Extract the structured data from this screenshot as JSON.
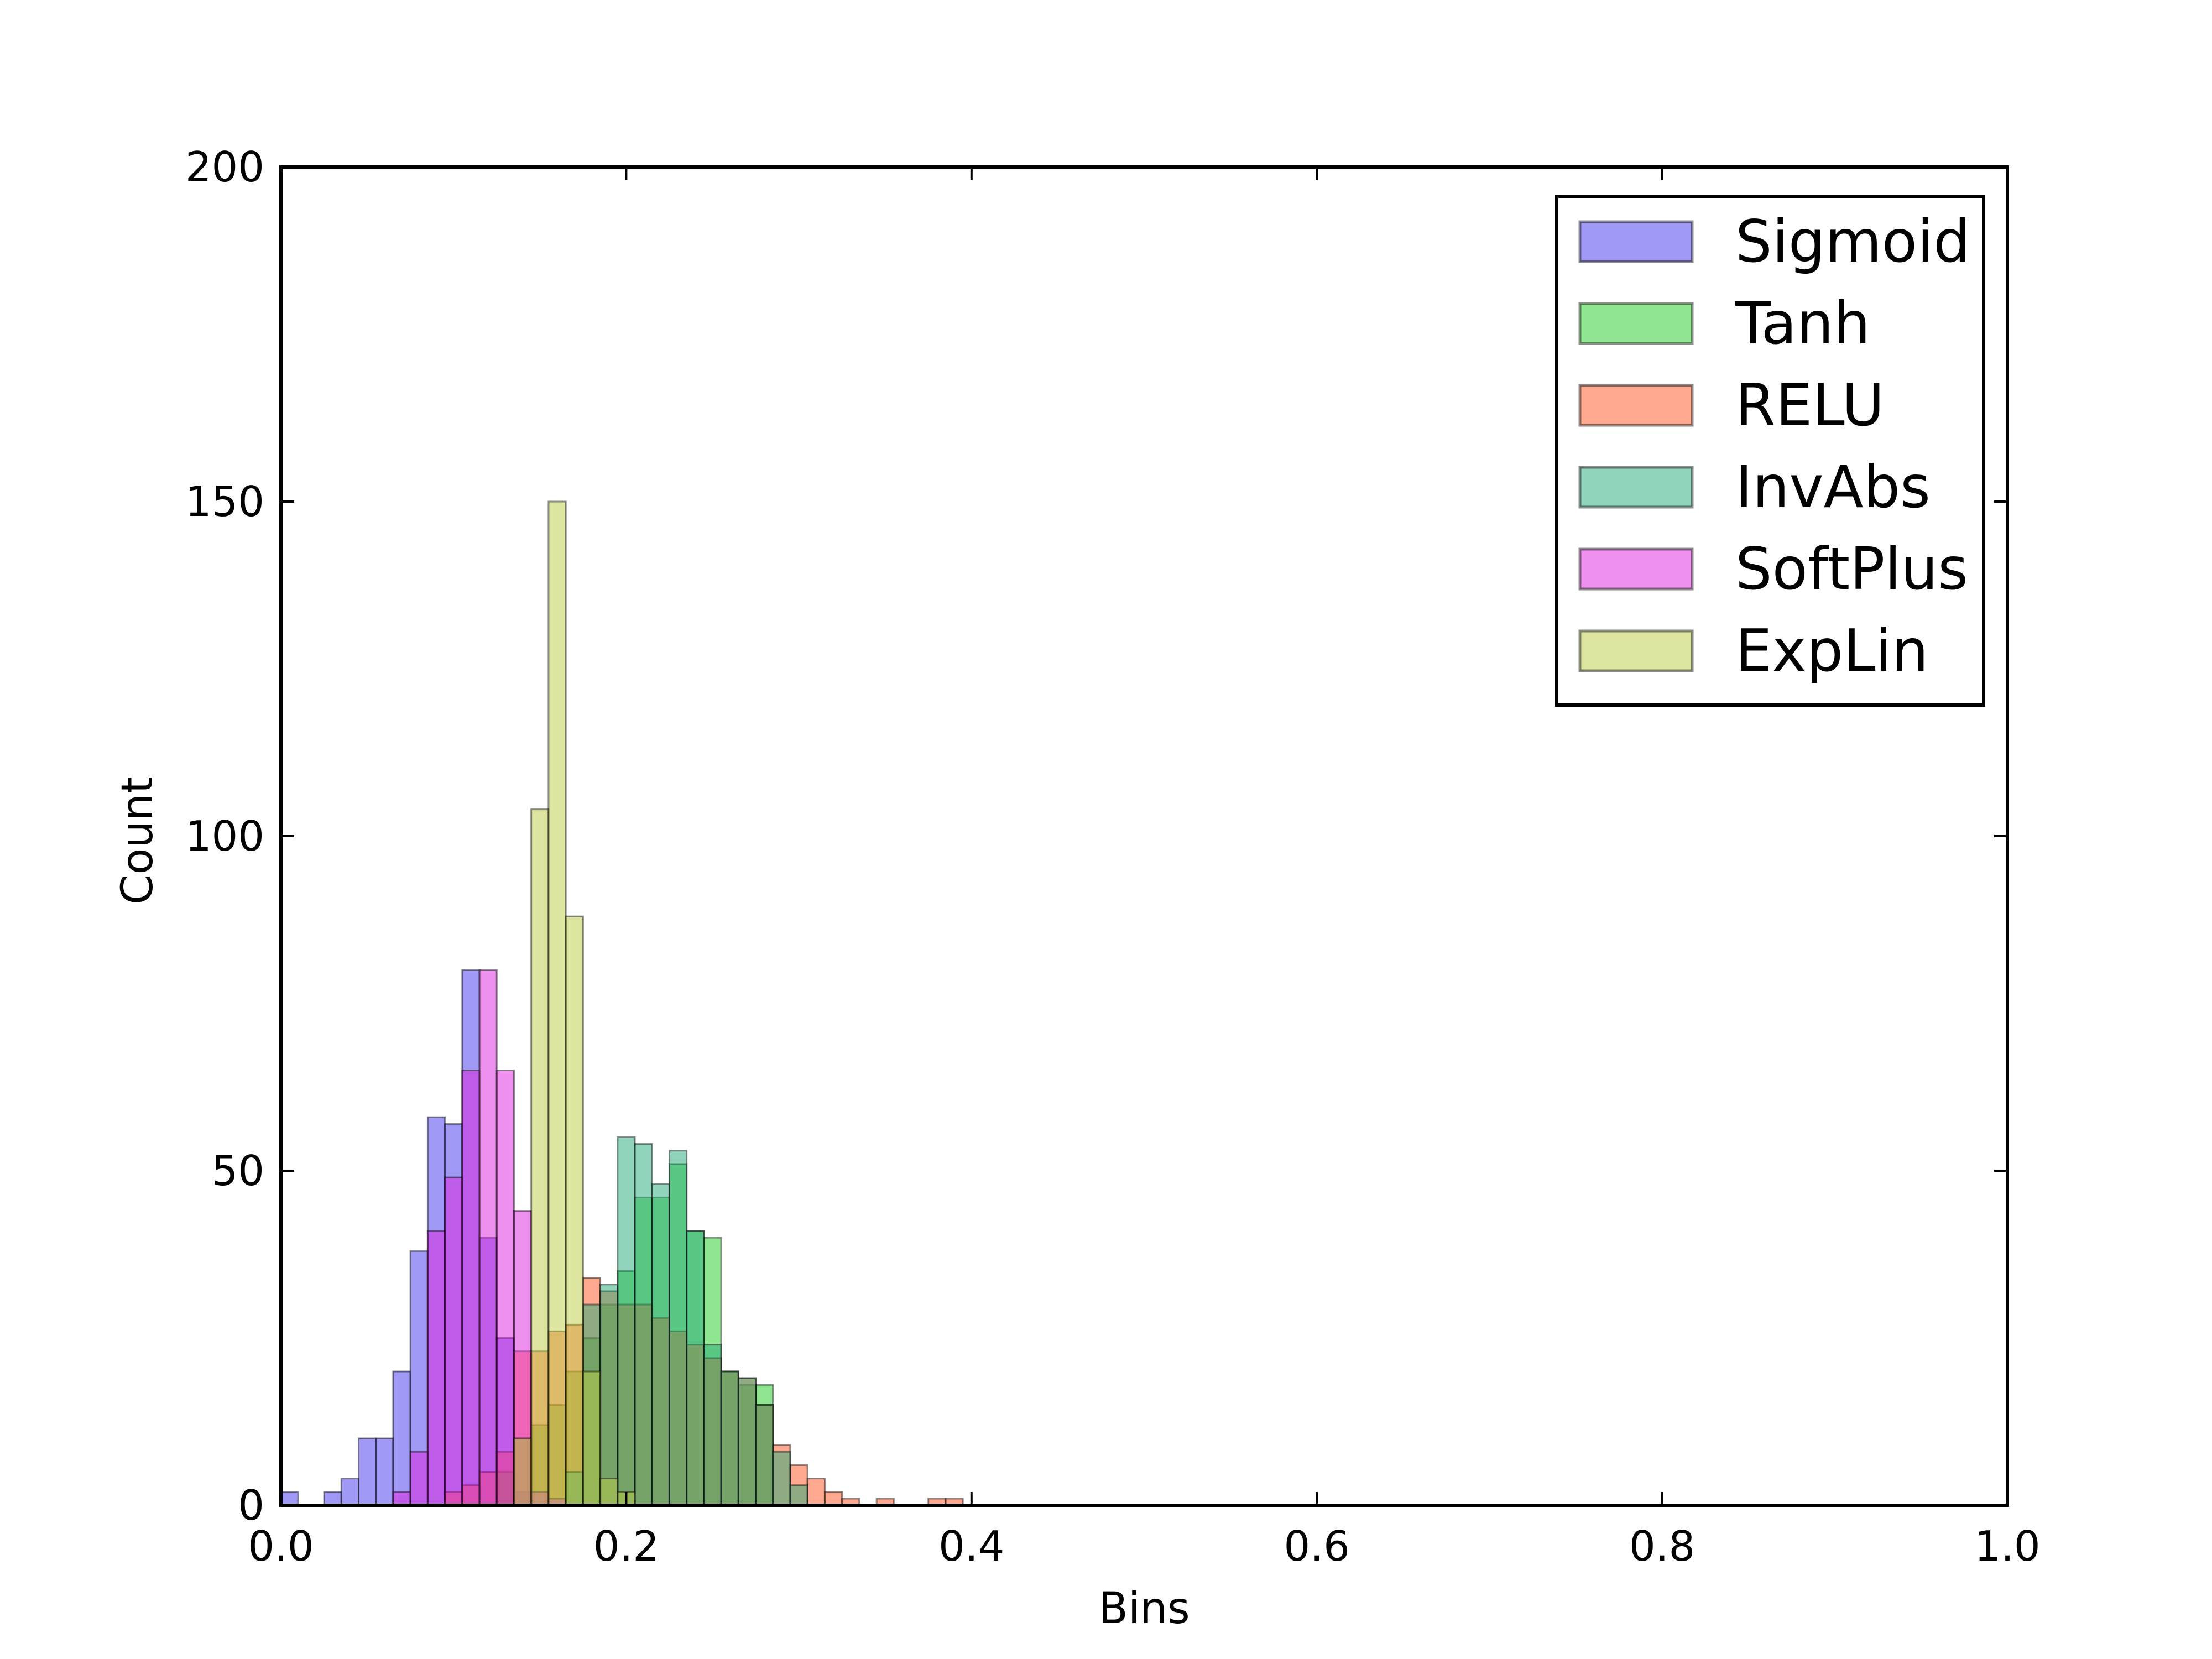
{
  "chart_data": {
    "type": "bar",
    "title": "",
    "xlabel": "Bins",
    "ylabel": "Count",
    "xlim": [
      0.0,
      1.0
    ],
    "ylim": [
      0,
      200
    ],
    "bin_width": 0.01,
    "bar_opacity": 0.5,
    "grid": false,
    "legend_position": "top-right",
    "x_ticks": [
      "0.0",
      "0.2",
      "0.4",
      "0.6",
      "0.8",
      "1.0"
    ],
    "y_ticks": [
      "0",
      "50",
      "100",
      "150",
      "200"
    ],
    "series": [
      {
        "name": "Sigmoid",
        "color": "#4433ee",
        "x": [
          0.0,
          0.025,
          0.035,
          0.045,
          0.055,
          0.065,
          0.075,
          0.085,
          0.095,
          0.105,
          0.115,
          0.125,
          0.135
        ],
        "values": [
          2,
          2,
          4,
          10,
          10,
          20,
          38,
          58,
          57,
          80,
          40,
          25,
          2
        ]
      },
      {
        "name": "Tanh",
        "color": "#22cc22",
        "x": [
          0.125,
          0.135,
          0.145,
          0.155,
          0.165,
          0.175,
          0.185,
          0.195,
          0.205,
          0.215,
          0.225,
          0.235,
          0.245,
          0.255,
          0.265,
          0.275
        ],
        "values": [
          5,
          10,
          12,
          15,
          20,
          25,
          30,
          35,
          46,
          46,
          51,
          41,
          40,
          20,
          18,
          18
        ]
      },
      {
        "name": "RELU",
        "color": "#ff5522",
        "x": [
          0.095,
          0.105,
          0.115,
          0.125,
          0.135,
          0.145,
          0.155,
          0.165,
          0.175,
          0.185,
          0.195,
          0.205,
          0.215,
          0.225,
          0.235,
          0.245,
          0.255,
          0.265,
          0.275,
          0.285,
          0.295,
          0.305,
          0.315,
          0.325,
          0.345,
          0.375,
          0.385
        ],
        "values": [
          2,
          3,
          5,
          8,
          23,
          23,
          26,
          27,
          34,
          32,
          30,
          30,
          28,
          26,
          24,
          22,
          20,
          19,
          15,
          9,
          6,
          4,
          2,
          1,
          1,
          1,
          1
        ]
      },
      {
        "name": "InvAbs",
        "color": "#22aa77",
        "x": [
          0.165,
          0.175,
          0.185,
          0.195,
          0.205,
          0.215,
          0.225,
          0.235,
          0.245,
          0.255,
          0.265,
          0.275,
          0.285,
          0.295
        ],
        "values": [
          5,
          30,
          33,
          55,
          54,
          48,
          53,
          41,
          24,
          20,
          19,
          15,
          8,
          3
        ]
      },
      {
        "name": "SoftPlus",
        "color": "#dd22dd",
        "x": [
          0.065,
          0.075,
          0.085,
          0.095,
          0.105,
          0.115,
          0.125,
          0.135,
          0.145,
          0.155
        ],
        "values": [
          2,
          8,
          41,
          49,
          65,
          80,
          65,
          44,
          2,
          1
        ]
      },
      {
        "name": "ExpLin",
        "color": "#bbcc44",
        "x": [
          0.135,
          0.145,
          0.155,
          0.165,
          0.175,
          0.185,
          0.195
        ],
        "values": [
          10,
          104,
          150,
          88,
          20,
          4,
          2
        ]
      }
    ]
  }
}
